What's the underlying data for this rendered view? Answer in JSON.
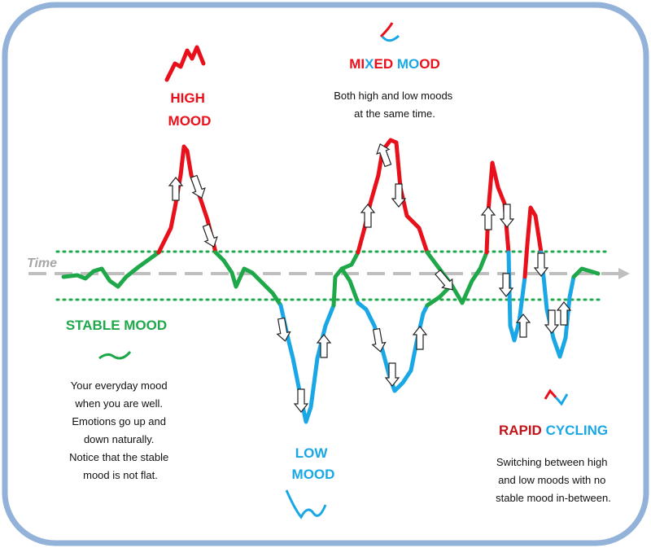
{
  "labels": {
    "time": "Time",
    "high_mood": [
      "HIGH",
      "MOOD"
    ],
    "mixed_mood": [
      {
        "text": "MI",
        "color": "#e8101a"
      },
      {
        "text": "X",
        "color": "#1aa7e6"
      },
      {
        "text": "ED ",
        "color": "#e8101a"
      },
      {
        "text": "MO",
        "color": "#1aa7e6"
      },
      {
        "text": "OD",
        "color": "#e8101a"
      }
    ],
    "stable_mood": "STABLE MOOD",
    "low_mood": [
      "LOW",
      "MOOD"
    ],
    "rapid_cycling": [
      {
        "text": "RAPID ",
        "color": "#c0151b"
      },
      {
        "text": "CYCLING",
        "color": "#1aa7e6"
      }
    ]
  },
  "descriptions": {
    "mixed_mood": [
      "Both high and low moods",
      "at the same time."
    ],
    "stable_mood": [
      "Your everyday mood",
      "when you are well.",
      "Emotions go up and",
      "down naturally.",
      "Notice that the stable",
      "mood is not flat."
    ],
    "rapid_cycling": [
      "Switching between high",
      "and low moods with no",
      "stable mood in-between."
    ]
  }
}
